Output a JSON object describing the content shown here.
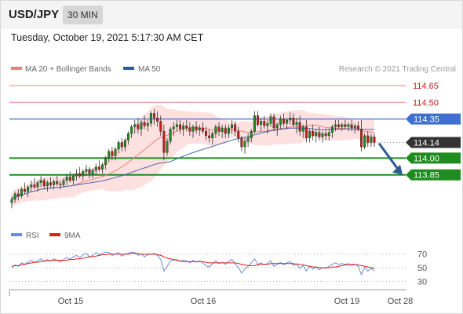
{
  "header": {
    "symbol": "USD/JPY",
    "interval": "30 MIN",
    "timestamp": "Tuesday, October 19, 2021 5:17:30 AM CET"
  },
  "legend": {
    "ma20_label": "MA 20 + Bollinger Bands",
    "ma50_label": "MA 50",
    "ma20_color": "#f08080",
    "ma50_color": "#2d5aa0",
    "credit": "Research © 2021 Trading Central"
  },
  "colors": {
    "resistance": "#f08080",
    "pivot": "#3f6fd0",
    "support": "#1e8c1e",
    "price_tag": "#333333",
    "arrow": "#2c5b95",
    "candle_up": "#1e8c1e",
    "candle_down": "#c81e1e",
    "band_fill": "#fde0e0",
    "rsi": "#6a8fd8",
    "rsi_ma": "#e02020"
  },
  "chart_data": [
    {
      "type": "candlestick",
      "title": "",
      "x_ticks": [
        "Oct 15",
        "Oct 16",
        "Oct 19",
        "Oct 28"
      ],
      "ylim": [
        113.44,
        114.72
      ],
      "levels": [
        {
          "label": "114.65",
          "value": 114.65,
          "kind": "resistance"
        },
        {
          "label": "114.50",
          "value": 114.5,
          "kind": "resistance"
        },
        {
          "label": "114.35",
          "value": 114.35,
          "kind": "pivot"
        },
        {
          "label": "114.14",
          "value": 114.14,
          "kind": "last_price"
        },
        {
          "label": "114.00",
          "value": 114.0,
          "kind": "support"
        },
        {
          "label": "113.85",
          "value": 113.85,
          "kind": "support"
        }
      ],
      "forecast": {
        "direction": "down",
        "from": 114.16,
        "to": 113.85
      },
      "ohlc": [
        [
          113.6,
          113.66,
          113.55,
          113.63
        ],
        [
          113.63,
          113.7,
          113.6,
          113.68
        ],
        [
          113.68,
          113.72,
          113.62,
          113.66
        ],
        [
          113.66,
          113.74,
          113.64,
          113.72
        ],
        [
          113.72,
          113.78,
          113.68,
          113.7
        ],
        [
          113.7,
          113.76,
          113.65,
          113.74
        ],
        [
          113.74,
          113.8,
          113.7,
          113.76
        ],
        [
          113.76,
          113.82,
          113.72,
          113.74
        ],
        [
          113.74,
          113.8,
          113.7,
          113.78
        ],
        [
          113.78,
          113.84,
          113.74,
          113.8
        ],
        [
          113.8,
          113.82,
          113.72,
          113.75
        ],
        [
          113.75,
          113.8,
          113.7,
          113.78
        ],
        [
          113.78,
          113.83,
          113.73,
          113.76
        ],
        [
          113.76,
          113.81,
          113.72,
          113.79
        ],
        [
          113.79,
          113.84,
          113.75,
          113.77
        ],
        [
          113.77,
          113.8,
          113.72,
          113.76
        ],
        [
          113.76,
          113.82,
          113.74,
          113.8
        ],
        [
          113.8,
          113.86,
          113.76,
          113.83
        ],
        [
          113.83,
          113.88,
          113.78,
          113.8
        ],
        [
          113.8,
          113.86,
          113.76,
          113.84
        ],
        [
          113.84,
          113.9,
          113.8,
          113.86
        ],
        [
          113.86,
          113.92,
          113.82,
          113.84
        ],
        [
          113.84,
          113.9,
          113.8,
          113.88
        ],
        [
          113.88,
          113.94,
          113.84,
          113.9
        ],
        [
          113.9,
          113.92,
          113.82,
          113.86
        ],
        [
          113.86,
          113.91,
          113.82,
          113.89
        ],
        [
          113.89,
          113.95,
          113.85,
          113.92
        ],
        [
          113.92,
          113.98,
          113.88,
          113.9
        ],
        [
          113.9,
          113.96,
          113.86,
          113.94
        ],
        [
          113.94,
          114.02,
          113.9,
          114.0
        ],
        [
          114.0,
          114.08,
          113.96,
          114.06
        ],
        [
          114.06,
          114.1,
          113.98,
          114.02
        ],
        [
          114.02,
          114.1,
          113.98,
          114.08
        ],
        [
          114.08,
          114.16,
          114.04,
          114.14
        ],
        [
          114.14,
          114.18,
          114.06,
          114.1
        ],
        [
          114.1,
          114.18,
          114.06,
          114.16
        ],
        [
          114.16,
          114.24,
          114.12,
          114.22
        ],
        [
          114.22,
          114.3,
          114.18,
          114.28
        ],
        [
          114.28,
          114.34,
          114.22,
          114.3
        ],
        [
          114.3,
          114.36,
          114.22,
          114.26
        ],
        [
          114.26,
          114.34,
          114.2,
          114.32
        ],
        [
          114.32,
          114.38,
          114.26,
          114.29
        ],
        [
          114.29,
          114.34,
          114.24,
          114.31
        ],
        [
          114.31,
          114.42,
          114.28,
          114.4
        ],
        [
          114.4,
          114.44,
          114.3,
          114.36
        ],
        [
          114.36,
          114.42,
          114.28,
          114.33
        ],
        [
          114.33,
          114.38,
          114.2,
          114.24
        ],
        [
          114.24,
          114.3,
          113.98,
          114.05
        ],
        [
          114.05,
          114.18,
          114.02,
          114.15
        ],
        [
          114.15,
          114.28,
          114.12,
          114.26
        ],
        [
          114.26,
          114.32,
          114.2,
          114.28
        ],
        [
          114.28,
          114.34,
          114.24,
          114.3
        ],
        [
          114.3,
          114.34,
          114.22,
          114.26
        ],
        [
          114.26,
          114.32,
          114.2,
          114.29
        ],
        [
          114.29,
          114.34,
          114.24,
          114.27
        ],
        [
          114.27,
          114.32,
          114.2,
          114.24
        ],
        [
          114.24,
          114.3,
          114.18,
          114.28
        ],
        [
          114.28,
          114.33,
          114.22,
          114.25
        ],
        [
          114.25,
          114.3,
          114.2,
          114.27
        ],
        [
          114.27,
          114.32,
          114.22,
          114.24
        ],
        [
          114.24,
          114.28,
          114.16,
          114.2
        ],
        [
          114.2,
          114.26,
          114.14,
          114.18
        ],
        [
          114.18,
          114.24,
          114.12,
          114.22
        ],
        [
          114.22,
          114.3,
          114.18,
          114.28
        ],
        [
          114.28,
          114.32,
          114.2,
          114.24
        ],
        [
          114.24,
          114.3,
          114.18,
          114.27
        ],
        [
          114.27,
          114.3,
          114.18,
          114.22
        ],
        [
          114.22,
          114.3,
          114.18,
          114.27
        ],
        [
          114.27,
          114.34,
          114.22,
          114.3
        ],
        [
          114.3,
          114.33,
          114.2,
          114.24
        ],
        [
          114.24,
          114.28,
          114.14,
          114.18
        ],
        [
          114.18,
          114.2,
          114.06,
          114.1
        ],
        [
          114.1,
          114.18,
          114.04,
          114.15
        ],
        [
          114.15,
          114.22,
          114.1,
          114.18
        ],
        [
          114.18,
          114.26,
          114.14,
          114.24
        ],
        [
          114.24,
          114.42,
          114.22,
          114.38
        ],
        [
          114.38,
          114.42,
          114.28,
          114.3
        ],
        [
          114.3,
          114.36,
          114.24,
          114.33
        ],
        [
          114.33,
          114.38,
          114.26,
          114.29
        ],
        [
          114.29,
          114.34,
          114.22,
          114.31
        ],
        [
          114.31,
          114.4,
          114.28,
          114.37
        ],
        [
          114.37,
          114.4,
          114.24,
          114.27
        ],
        [
          114.27,
          114.32,
          114.2,
          114.3
        ],
        [
          114.3,
          114.38,
          114.26,
          114.35
        ],
        [
          114.35,
          114.4,
          114.28,
          114.31
        ],
        [
          114.31,
          114.36,
          114.26,
          114.34
        ],
        [
          114.34,
          114.41,
          114.3,
          114.36
        ],
        [
          114.36,
          114.4,
          114.28,
          114.3
        ],
        [
          114.3,
          114.36,
          114.22,
          114.32
        ],
        [
          114.32,
          114.38,
          114.2,
          114.24
        ],
        [
          114.24,
          114.3,
          114.18,
          114.28
        ],
        [
          114.28,
          114.34,
          114.14,
          114.18
        ],
        [
          114.18,
          114.26,
          114.14,
          114.24
        ],
        [
          114.24,
          114.3,
          114.16,
          114.2
        ],
        [
          114.2,
          114.26,
          114.14,
          114.23
        ],
        [
          114.23,
          114.28,
          114.16,
          114.19
        ],
        [
          114.19,
          114.24,
          114.14,
          114.22
        ],
        [
          114.22,
          114.26,
          114.16,
          114.2
        ],
        [
          114.2,
          114.26,
          114.16,
          114.23
        ],
        [
          114.23,
          114.3,
          114.18,
          114.28
        ],
        [
          114.28,
          114.34,
          114.24,
          114.3
        ],
        [
          114.3,
          114.34,
          114.26,
          114.28
        ],
        [
          114.28,
          114.32,
          114.24,
          114.3
        ],
        [
          114.3,
          114.34,
          114.26,
          114.28
        ],
        [
          114.28,
          114.32,
          114.24,
          114.3
        ],
        [
          114.3,
          114.34,
          114.24,
          114.27
        ],
        [
          114.27,
          114.31,
          114.22,
          114.29
        ],
        [
          114.29,
          114.33,
          114.24,
          114.26
        ],
        [
          114.26,
          114.34,
          114.06,
          114.1
        ],
        [
          114.1,
          114.22,
          114.08,
          114.2
        ],
        [
          114.2,
          114.24,
          114.1,
          114.14
        ],
        [
          114.14,
          114.22,
          114.1,
          114.19
        ],
        [
          114.19,
          114.22,
          114.1,
          114.14
        ]
      ]
    },
    {
      "type": "line",
      "title": "",
      "series": [
        {
          "name": "RSI",
          "values": [
            50,
            54,
            52,
            57,
            55,
            58,
            61,
            58,
            60,
            63,
            59,
            62,
            60,
            63,
            61,
            58,
            62,
            65,
            62,
            66,
            68,
            65,
            69,
            71,
            66,
            68,
            72,
            69,
            71,
            73,
            72,
            68,
            70,
            72,
            67,
            70,
            71,
            73,
            72,
            68,
            70,
            66,
            69,
            70,
            71,
            68,
            62,
            45,
            52,
            60,
            61,
            62,
            59,
            61,
            60,
            57,
            61,
            58,
            60,
            57,
            53,
            51,
            56,
            60,
            56,
            58,
            55,
            59,
            62,
            56,
            50,
            42,
            48,
            52,
            57,
            63,
            55,
            57,
            54,
            56,
            60,
            52,
            55,
            58,
            54,
            57,
            59,
            53,
            56,
            49,
            53,
            45,
            52,
            48,
            51,
            47,
            50,
            49,
            52,
            55,
            57,
            55,
            56,
            55,
            56,
            53,
            55,
            52,
            40,
            50,
            45,
            49,
            45
          ]
        },
        {
          "name": "9MA",
          "values": [
            52,
            53,
            53,
            54,
            55,
            56,
            57,
            58,
            58,
            59,
            60,
            60,
            60,
            61,
            61,
            61,
            61,
            61,
            62,
            62,
            63,
            63,
            64,
            65,
            66,
            66,
            67,
            68,
            69,
            69,
            70,
            70,
            70,
            70,
            70,
            70,
            70,
            71,
            71,
            71,
            70,
            70,
            70,
            70,
            70,
            69,
            68,
            66,
            64,
            63,
            62,
            61,
            60,
            59,
            59,
            59,
            59,
            59,
            59,
            59,
            58,
            57,
            57,
            57,
            57,
            57,
            57,
            57,
            57,
            57,
            56,
            55,
            54,
            53,
            53,
            53,
            54,
            55,
            55,
            55,
            56,
            56,
            56,
            56,
            56,
            56,
            56,
            56,
            55,
            55,
            54,
            53,
            52,
            51,
            51,
            50,
            50,
            50,
            50,
            51,
            51,
            52,
            53,
            54,
            54,
            55,
            55,
            54,
            53,
            52,
            51,
            50,
            49
          ]
        }
      ],
      "levels": [
        70,
        50,
        30
      ],
      "ylim": [
        20,
        80
      ]
    }
  ]
}
